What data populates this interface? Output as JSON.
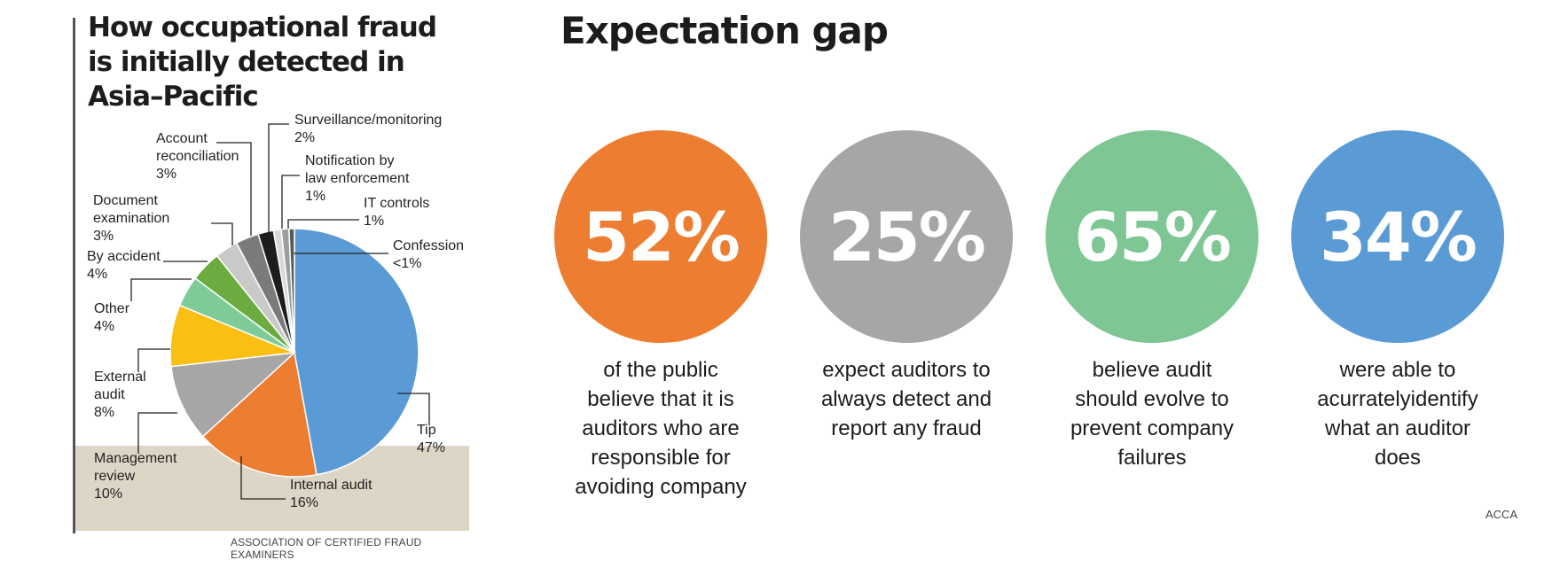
{
  "left": {
    "title": "How occupational fraud\nis initially detected in\nAsia–Pacific",
    "source": "ASSOCIATION OF CERTIFIED FRAUD EXAMINERS"
  },
  "chart_data": {
    "type": "pie",
    "title": "How occupational fraud is initially detected in Asia–Pacific",
    "slices": [
      {
        "label": "Tip",
        "value_label": "47%",
        "value": 47,
        "color": "#5b9bd5"
      },
      {
        "label": "Internal audit",
        "value_label": "16%",
        "value": 16,
        "color": "#ed7d31"
      },
      {
        "label": "Management review",
        "value_label": "10%",
        "value": 10,
        "color": "#a6a6a6"
      },
      {
        "label": "External audit",
        "value_label": "8%",
        "value": 8,
        "color": "#f9c013"
      },
      {
        "label": "Other",
        "value_label": "4%",
        "value": 4,
        "color": "#7ecb98"
      },
      {
        "label": "By accident",
        "value_label": "4%",
        "value": 4,
        "color": "#6bab3f"
      },
      {
        "label": "Document examination",
        "value_label": "3%",
        "value": 3,
        "color": "#c9c9c9"
      },
      {
        "label": "Account reconciliation",
        "value_label": "3%",
        "value": 3,
        "color": "#7a7b7d"
      },
      {
        "label": "Surveillance/monitoring",
        "value_label": "2%",
        "value": 2,
        "color": "#1d1d1d"
      },
      {
        "label": "Notification by law enforcement",
        "value_label": "1%",
        "value": 1,
        "color": "#d9d9d9"
      },
      {
        "label": "IT controls",
        "value_label": "1%",
        "value": 1,
        "color": "#9d9d9d"
      },
      {
        "label": "Confession",
        "value_label": "<1%",
        "value": 0.7,
        "color": "#595959"
      }
    ],
    "label_lines": {
      "Tip": [
        "Tip",
        "47%"
      ],
      "Internal audit": [
        "Internal audit",
        "16%"
      ],
      "Management review": [
        "Management",
        "review",
        "10%"
      ],
      "External audit": [
        "External",
        "audit",
        "8%"
      ],
      "Other": [
        "Other",
        "4%"
      ],
      "By accident": [
        "By accident",
        "4%"
      ],
      "Document examination": [
        "Document",
        "examination",
        "3%"
      ],
      "Account reconciliation": [
        "Account",
        "reconciliation",
        "3%"
      ],
      "Surveillance/monitoring": [
        "Surveillance/monitoring",
        "2%"
      ],
      "Notification by law enforcement": [
        "Notification by",
        "law enforcement",
        "1%"
      ],
      "IT controls": [
        "IT controls",
        "1%"
      ],
      "Confession": [
        "Confession",
        "<1%"
      ]
    },
    "highlight_color": "#ddd5c5"
  },
  "right": {
    "title": "Expectation gap",
    "source": "ACCA",
    "stats": [
      {
        "value": "52%",
        "color": "#ed7d31",
        "desc": "of the public\nbelieve that it is\nauditors who are\nresponsible for\navoiding company"
      },
      {
        "value": "25%",
        "color": "#a6a6a6",
        "desc": "expect auditors to\nalways detect and\nreport any fraud"
      },
      {
        "value": "65%",
        "color": "#7ec795",
        "desc": "believe audit\nshould evolve to\nprevent company\nfailures"
      },
      {
        "value": "34%",
        "color": "#5b9bd5",
        "desc": "were able to\nacurratelyidentify\nwhat an auditor\ndoes"
      }
    ]
  }
}
